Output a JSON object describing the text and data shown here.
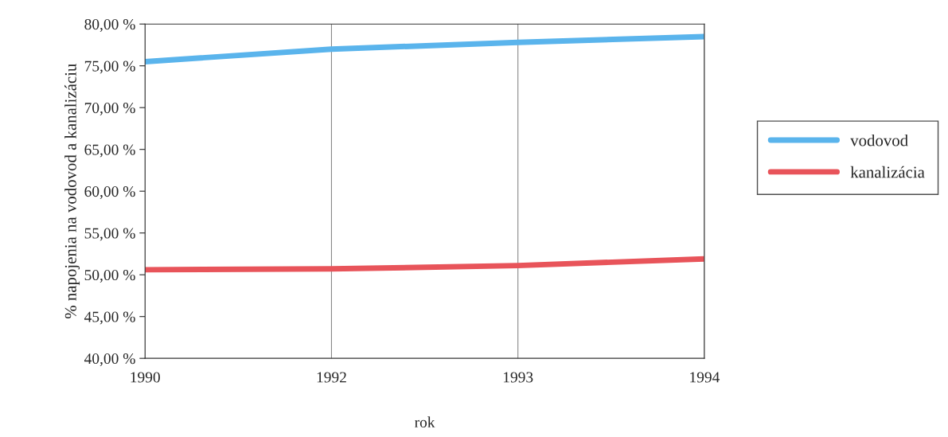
{
  "chart_data": {
    "type": "line",
    "xlabel": "rok",
    "ylabel": "% napojenia na vodovod a kanalizáciu",
    "categories": [
      "1990",
      "1992",
      "1993",
      "1994"
    ],
    "series": [
      {
        "name": "vodovod",
        "color": "#5ab4ec",
        "values": [
          75.5,
          77.0,
          77.8,
          78.5
        ]
      },
      {
        "name": "kanalizácia",
        "color": "#e8545a",
        "values": [
          50.6,
          50.7,
          51.1,
          51.9
        ]
      }
    ],
    "ylim": [
      40,
      80
    ],
    "yticks": [
      {
        "value": 40,
        "label": "40,00 %"
      },
      {
        "value": 45,
        "label": "45,00 %"
      },
      {
        "value": 50,
        "label": "50,00 %"
      },
      {
        "value": 55,
        "label": "55,00 %"
      },
      {
        "value": 60,
        "label": "60,00 %"
      },
      {
        "value": 65,
        "label": "65,00 %"
      },
      {
        "value": 70,
        "label": "70,00 %"
      },
      {
        "value": 75,
        "label": "75,00 %"
      },
      {
        "value": 80,
        "label": "80,00 %"
      }
    ],
    "grid": "x",
    "legend": "right",
    "marker": "none",
    "line_style": "solid"
  }
}
